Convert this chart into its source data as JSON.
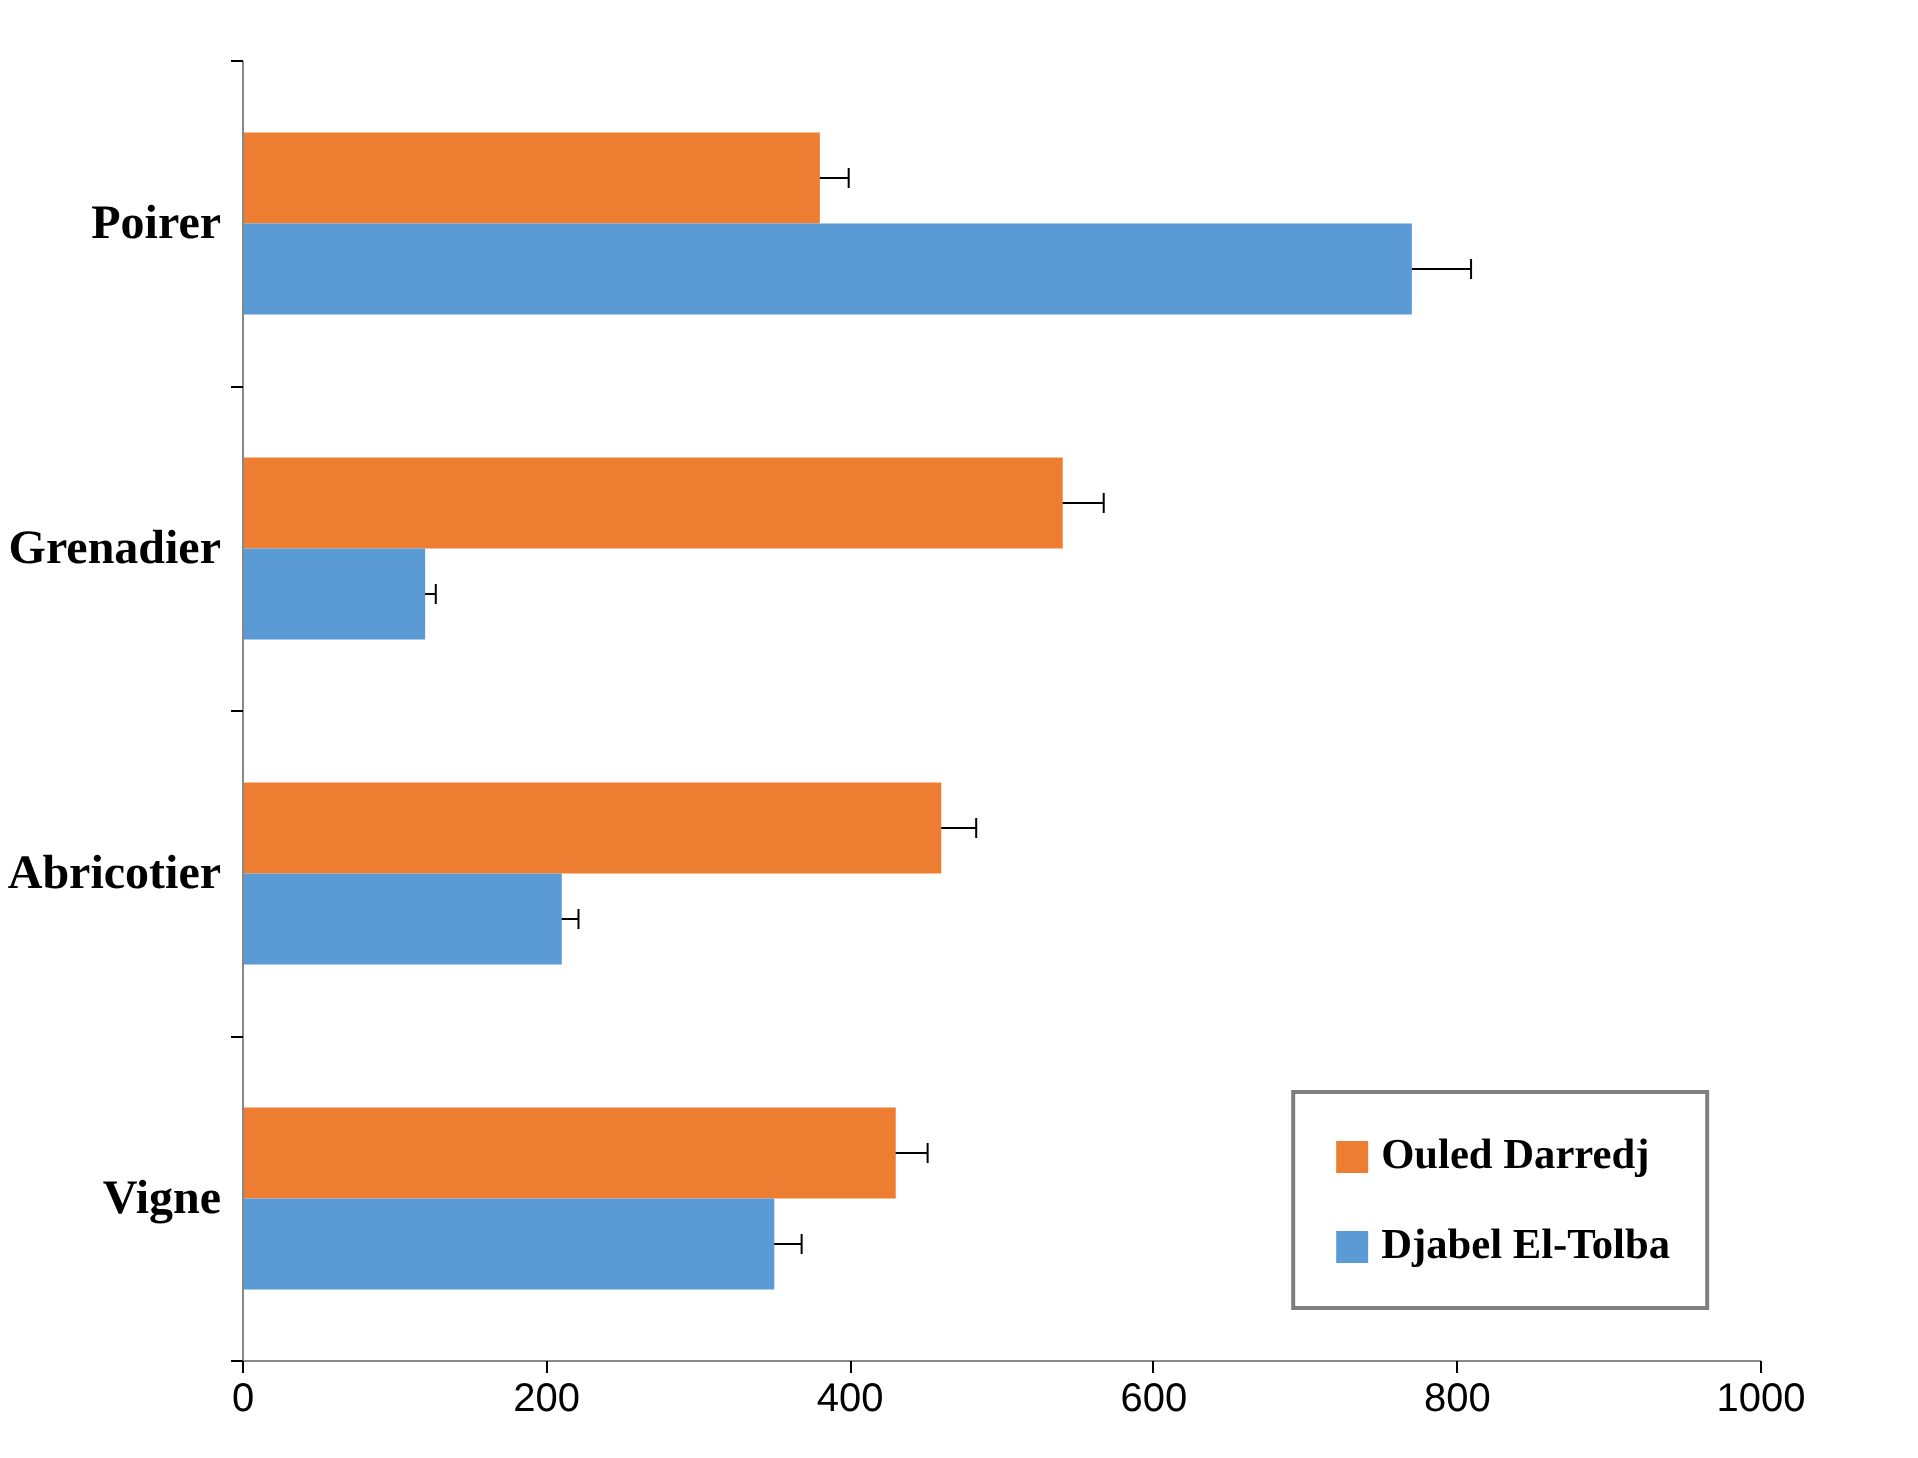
{
  "chart_data": {
    "type": "bar",
    "orientation": "horizontal",
    "categories": [
      "Poirer",
      "Grenadier",
      "Abricotier",
      "Vigne"
    ],
    "series": [
      {
        "name": "Ouled Darredj",
        "color": "#ed7d31",
        "values": [
          380,
          540,
          460,
          430
        ],
        "errors": [
          19,
          27,
          23,
          21
        ]
      },
      {
        "name": "Djabel El-Tolba",
        "color": "#5b9bd5",
        "values": [
          770,
          120,
          210,
          350
        ],
        "errors": [
          39,
          7,
          11,
          18
        ]
      }
    ],
    "xlim": [
      0,
      1000
    ],
    "xticks": [
      0,
      200,
      400,
      600,
      800,
      1000
    ],
    "grid": false,
    "legend": "bottom right"
  }
}
